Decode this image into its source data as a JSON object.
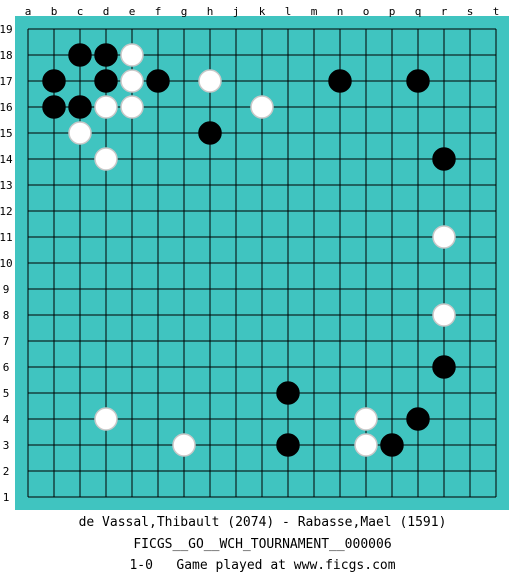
{
  "game": {
    "board_size": 19,
    "column_letters": [
      "a",
      "b",
      "c",
      "d",
      "e",
      "f",
      "g",
      "h",
      "j",
      "k",
      "l",
      "m",
      "n",
      "o",
      "p",
      "q",
      "r",
      "s",
      "t"
    ],
    "row_numbers": [
      "19",
      "18",
      "17",
      "16",
      "15",
      "14",
      "13",
      "12",
      "11",
      "10",
      "9",
      "8",
      "7",
      "6",
      "5",
      "4",
      "3",
      "2",
      "1"
    ],
    "colors": {
      "board": "#40c4c0",
      "line": "#000000",
      "black_stone": "#000000",
      "white_stone": "#ffffff"
    },
    "stones": [
      {
        "color": "black",
        "point": "c18"
      },
      {
        "color": "black",
        "point": "d18"
      },
      {
        "color": "white",
        "point": "e18"
      },
      {
        "color": "black",
        "point": "b17"
      },
      {
        "color": "black",
        "point": "d17"
      },
      {
        "color": "white",
        "point": "e17"
      },
      {
        "color": "black",
        "point": "f17"
      },
      {
        "color": "white",
        "point": "h17"
      },
      {
        "color": "black",
        "point": "n17"
      },
      {
        "color": "black",
        "point": "q17"
      },
      {
        "color": "black",
        "point": "b16"
      },
      {
        "color": "black",
        "point": "c16"
      },
      {
        "color": "white",
        "point": "d16"
      },
      {
        "color": "white",
        "point": "e16"
      },
      {
        "color": "white",
        "point": "k16"
      },
      {
        "color": "white",
        "point": "c15"
      },
      {
        "color": "black",
        "point": "h15"
      },
      {
        "color": "white",
        "point": "d14"
      },
      {
        "color": "black",
        "point": "r14"
      },
      {
        "color": "white",
        "point": "r11"
      },
      {
        "color": "white",
        "point": "r8"
      },
      {
        "color": "black",
        "point": "r6"
      },
      {
        "color": "black",
        "point": "l5"
      },
      {
        "color": "white",
        "point": "d4"
      },
      {
        "color": "white",
        "point": "o4"
      },
      {
        "color": "black",
        "point": "q4"
      },
      {
        "color": "white",
        "point": "g3"
      },
      {
        "color": "black",
        "point": "l3"
      },
      {
        "color": "white",
        "point": "o3"
      },
      {
        "color": "black",
        "point": "p3"
      }
    ]
  },
  "caption": {
    "players": "de Vassal,Thibault (2074) - Rabasse,Mael (1591)",
    "event": "FICGS__GO__WCH_TOURNAMENT__000006",
    "result_line": "1-0   Game played at www.ficgs.com"
  }
}
